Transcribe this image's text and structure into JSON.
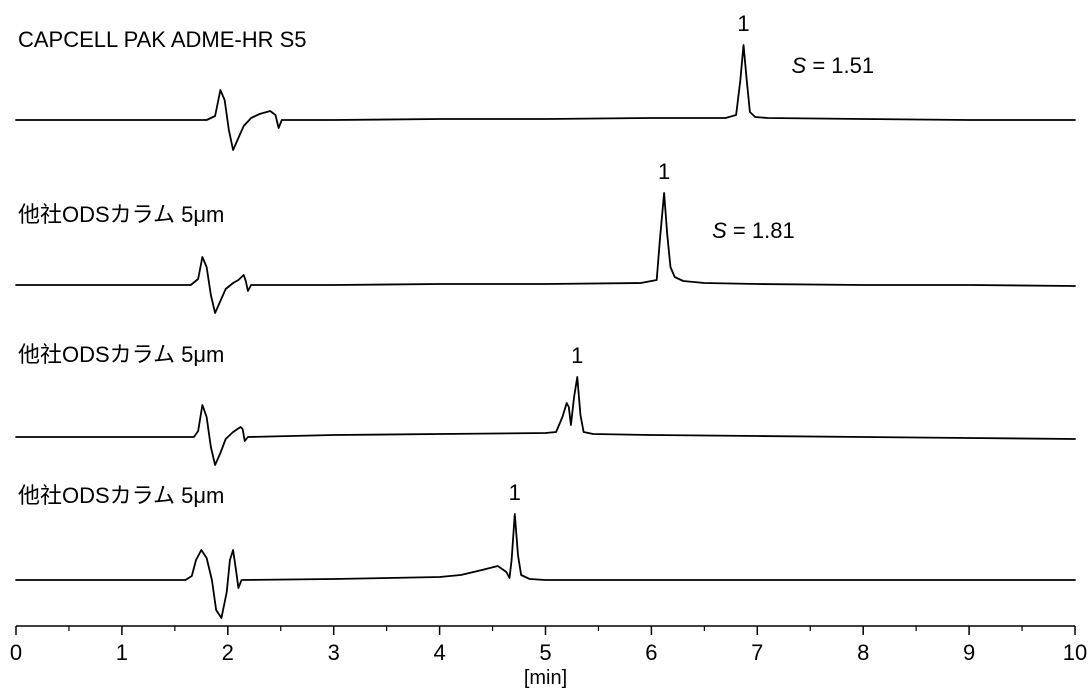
{
  "chart_data": {
    "type": "line",
    "xlabel": "[min]",
    "ylabel": "",
    "xlim": [
      0,
      10
    ],
    "x_ticks": [
      0,
      1,
      2,
      3,
      4,
      5,
      6,
      7,
      8,
      9,
      10
    ],
    "x_tick_labels": [
      "0",
      "1",
      "2",
      "3",
      "4",
      "5",
      "6",
      "7",
      "8",
      "9",
      "10"
    ],
    "grid": false,
    "legend": "none",
    "series": [
      {
        "name": "CAPCELL PAK ADME-HR S5",
        "peak_label": "1",
        "peak_time": 6.87,
        "s_italic": "S",
        "s_rest": " = 1.51",
        "points": [
          [
            0.0,
            0
          ],
          [
            1.8,
            0
          ],
          [
            1.88,
            4
          ],
          [
            1.93,
            30
          ],
          [
            1.97,
            20
          ],
          [
            2.01,
            -10
          ],
          [
            2.05,
            -30
          ],
          [
            2.1,
            -18
          ],
          [
            2.15,
            -6
          ],
          [
            2.22,
            2
          ],
          [
            2.3,
            6
          ],
          [
            2.4,
            9
          ],
          [
            2.45,
            5
          ],
          [
            2.48,
            -8
          ],
          [
            2.51,
            0
          ],
          [
            3.0,
            0
          ],
          [
            4.0,
            1
          ],
          [
            5.0,
            1
          ],
          [
            6.0,
            2
          ],
          [
            6.7,
            2
          ],
          [
            6.8,
            5
          ],
          [
            6.84,
            40
          ],
          [
            6.87,
            75
          ],
          [
            6.9,
            40
          ],
          [
            6.93,
            8
          ],
          [
            6.98,
            3
          ],
          [
            7.1,
            2
          ],
          [
            8.0,
            1
          ],
          [
            9.0,
            0
          ],
          [
            10.0,
            0
          ]
        ]
      },
      {
        "name": "他社ODSカラム 5μm",
        "peak_label": "1",
        "peak_time": 6.12,
        "s_italic": "S",
        "s_rest": " = 1.81",
        "points": [
          [
            0.0,
            0
          ],
          [
            1.65,
            0
          ],
          [
            1.72,
            6
          ],
          [
            1.76,
            28
          ],
          [
            1.8,
            18
          ],
          [
            1.84,
            -10
          ],
          [
            1.88,
            -28
          ],
          [
            1.93,
            -16
          ],
          [
            1.98,
            -4
          ],
          [
            2.05,
            2
          ],
          [
            2.1,
            5
          ],
          [
            2.15,
            10
          ],
          [
            2.17,
            4
          ],
          [
            2.19,
            -6
          ],
          [
            2.22,
            0
          ],
          [
            3.0,
            0
          ],
          [
            4.0,
            1
          ],
          [
            5.0,
            1
          ],
          [
            5.9,
            2
          ],
          [
            6.05,
            5
          ],
          [
            6.08,
            45
          ],
          [
            6.12,
            92
          ],
          [
            6.15,
            50
          ],
          [
            6.18,
            18
          ],
          [
            6.22,
            8
          ],
          [
            6.3,
            4
          ],
          [
            6.5,
            2
          ],
          [
            7.0,
            1
          ],
          [
            8.0,
            0
          ],
          [
            9.0,
            0
          ],
          [
            10.0,
            -1
          ]
        ]
      },
      {
        "name": "他社ODSカラム 5μm",
        "peak_label": "1",
        "peak_time": 5.3,
        "s_italic": "",
        "s_rest": "",
        "points": [
          [
            0.0,
            0
          ],
          [
            1.68,
            0
          ],
          [
            1.72,
            6
          ],
          [
            1.76,
            32
          ],
          [
            1.8,
            20
          ],
          [
            1.84,
            -10
          ],
          [
            1.88,
            -28
          ],
          [
            1.93,
            -16
          ],
          [
            1.98,
            -2
          ],
          [
            2.05,
            5
          ],
          [
            2.12,
            10
          ],
          [
            2.14,
            8
          ],
          [
            2.16,
            -4
          ],
          [
            2.19,
            0
          ],
          [
            3.0,
            2
          ],
          [
            4.0,
            3
          ],
          [
            5.0,
            4
          ],
          [
            5.1,
            5
          ],
          [
            5.16,
            20
          ],
          [
            5.2,
            34
          ],
          [
            5.22,
            30
          ],
          [
            5.24,
            12
          ],
          [
            5.27,
            40
          ],
          [
            5.3,
            60
          ],
          [
            5.33,
            22
          ],
          [
            5.36,
            5
          ],
          [
            5.45,
            3
          ],
          [
            6.0,
            2
          ],
          [
            7.0,
            1
          ],
          [
            8.0,
            0
          ],
          [
            9.0,
            -1
          ],
          [
            10.0,
            -2
          ]
        ]
      },
      {
        "name": "他社ODSカラム 5μm",
        "peak_label": "1",
        "peak_time": 4.71,
        "s_italic": "",
        "s_rest": "",
        "points": [
          [
            0.0,
            0
          ],
          [
            1.6,
            0
          ],
          [
            1.66,
            4
          ],
          [
            1.7,
            20
          ],
          [
            1.75,
            30
          ],
          [
            1.8,
            22
          ],
          [
            1.85,
            0
          ],
          [
            1.89,
            -30
          ],
          [
            1.94,
            -38
          ],
          [
            1.99,
            -12
          ],
          [
            2.02,
            20
          ],
          [
            2.05,
            30
          ],
          [
            2.08,
            8
          ],
          [
            2.1,
            -8
          ],
          [
            2.13,
            0
          ],
          [
            3.0,
            1
          ],
          [
            4.0,
            3
          ],
          [
            4.2,
            5
          ],
          [
            4.4,
            10
          ],
          [
            4.55,
            14
          ],
          [
            4.63,
            8
          ],
          [
            4.66,
            2
          ],
          [
            4.68,
            20
          ],
          [
            4.71,
            66
          ],
          [
            4.74,
            25
          ],
          [
            4.77,
            5
          ],
          [
            4.85,
            1
          ],
          [
            5.0,
            0
          ],
          [
            6.0,
            0
          ],
          [
            7.0,
            0
          ],
          [
            8.0,
            0
          ],
          [
            9.0,
            0
          ],
          [
            10.0,
            0
          ]
        ]
      }
    ]
  }
}
